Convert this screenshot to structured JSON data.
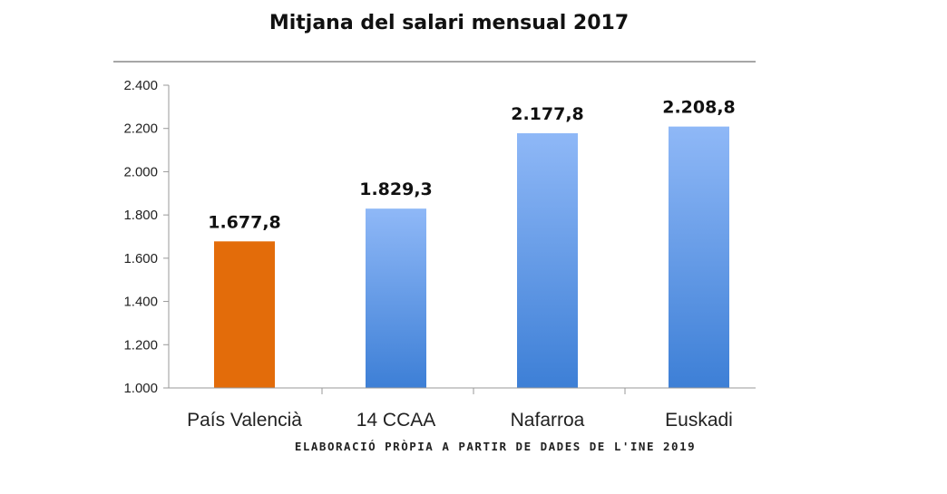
{
  "chart_data": {
    "type": "bar",
    "title": "Mitjana del salari mensual 2017",
    "categories": [
      "País Valencià",
      "14 CCAA",
      "Nafarroa",
      "Euskadi"
    ],
    "values": [
      1677.8,
      1829.3,
      2177.8,
      2208.8
    ],
    "value_labels": [
      "1.677,8",
      "1.829,3",
      "2.177,8",
      "2.208,8"
    ],
    "ylim": [
      1000,
      2400
    ],
    "yticks": [
      1000,
      1200,
      1400,
      1600,
      1800,
      2000,
      2200,
      2400
    ],
    "ytick_labels": [
      "1.000",
      "1.200",
      "1.400",
      "1.600",
      "1.800",
      "2.000",
      "2.200",
      "2.400"
    ],
    "xlabel": "",
    "ylabel": "",
    "source": "ELABORACIÓ PRÒPIA A PARTIR DE DADES DE L'INE 2019",
    "grid": false,
    "legend": "none",
    "colors": {
      "highlight": "#e36c0a",
      "bar_top": "#8fb8f7",
      "bar_bottom": "#3d7fd6",
      "axis": "#999999",
      "top_rule": "#888888"
    },
    "highlight_index": 0
  }
}
